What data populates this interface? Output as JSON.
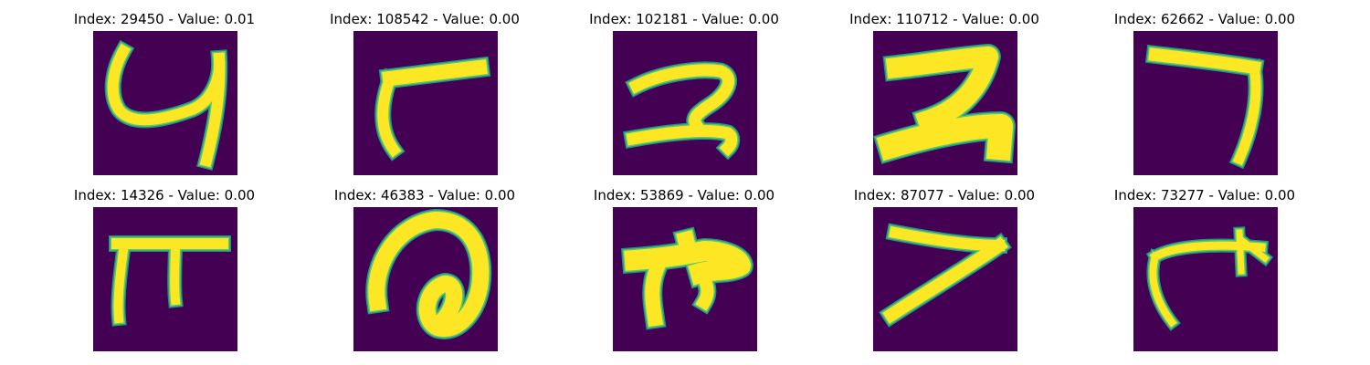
{
  "colors": {
    "background": "#440154",
    "stroke_core": "#fde725",
    "stroke_edge": "#5ec962",
    "stroke_halo": "#21918c"
  },
  "chart_data": [
    {
      "type": "image",
      "title": "Index: 29450 - Value: 0.01",
      "index": 29450,
      "value": 0.01,
      "glyph": "handwritten-4"
    },
    {
      "type": "image",
      "title": "Index: 108542 - Value: 0.00",
      "index": 108542,
      "value": 0.0,
      "glyph": "handwritten-corner"
    },
    {
      "type": "image",
      "title": "Index: 102181 - Value: 0.00",
      "index": 102181,
      "value": 0.0,
      "glyph": "handwritten-2"
    },
    {
      "type": "image",
      "title": "Index: 110712 - Value: 0.00",
      "index": 110712,
      "value": 0.0,
      "glyph": "handwritten-bold-2"
    },
    {
      "type": "image",
      "title": "Index: 62662 - Value: 0.00",
      "index": 62662,
      "value": 0.0,
      "glyph": "handwritten-7"
    },
    {
      "type": "image",
      "title": "Index: 14326 - Value: 0.00",
      "index": 14326,
      "value": 0.0,
      "glyph": "handwritten-pi"
    },
    {
      "type": "image",
      "title": "Index: 46383 - Value: 0.00",
      "index": 46383,
      "value": 0.0,
      "glyph": "handwritten-loop"
    },
    {
      "type": "image",
      "title": "Index: 53869 - Value: 0.00",
      "index": 53869,
      "value": 0.0,
      "glyph": "handwritten-blob"
    },
    {
      "type": "image",
      "title": "Index: 87077 - Value: 0.00",
      "index": 87077,
      "value": 0.0,
      "glyph": "handwritten-7b"
    },
    {
      "type": "image",
      "title": "Index: 73277 - Value: 0.00",
      "index": 73277,
      "value": 0.0,
      "glyph": "handwritten-arrow"
    }
  ]
}
